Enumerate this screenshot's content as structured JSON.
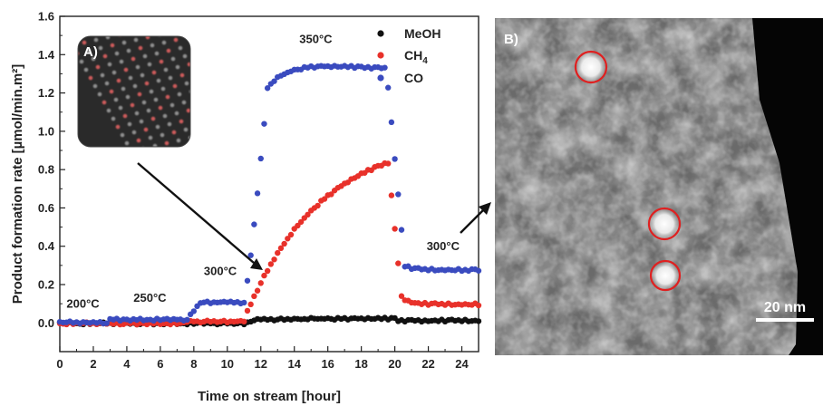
{
  "chart_data": {
    "type": "scatter",
    "xlabel": "Time on stream [hour]",
    "ylabel": "Product formation rate [µmol/min.m²]",
    "xlim": [
      0,
      25
    ],
    "ylim": [
      -0.15,
      1.6
    ],
    "x_ticks": [
      "0",
      "2",
      "4",
      "6",
      "8",
      "10",
      "12",
      "14",
      "16",
      "18",
      "20",
      "22",
      "24"
    ],
    "y_ticks": [
      "0.0",
      "0.2",
      "0.4",
      "0.6",
      "0.8",
      "1.0",
      "1.2",
      "1.4",
      "1.6"
    ],
    "legend_position": "top-right",
    "grid": false,
    "series": [
      {
        "name": "MeOH",
        "color": "#111111"
      },
      {
        "name": "CH",
        "name_sub": "4",
        "color": "#e8312a"
      },
      {
        "name": "CO",
        "color": "#3a4bbf"
      }
    ],
    "temperature_labels": [
      {
        "text": "200°C",
        "x": 0.4,
        "y": 0.08
      },
      {
        "text": "250°C",
        "x": 4.4,
        "y": 0.11
      },
      {
        "text": "300°C",
        "x": 8.6,
        "y": 0.25
      },
      {
        "text": "350°C",
        "x": 14.3,
        "y": 1.46
      },
      {
        "text": "300°C",
        "x": 21.9,
        "y": 0.38
      }
    ],
    "panel_a_label": "A)",
    "panel_b_label": "B)",
    "scale_bar_label": "20 nm",
    "colors": {
      "meoh": "#111111",
      "ch4": "#e8312a",
      "co": "#3a4bbf",
      "highlight": "#e02020"
    }
  }
}
